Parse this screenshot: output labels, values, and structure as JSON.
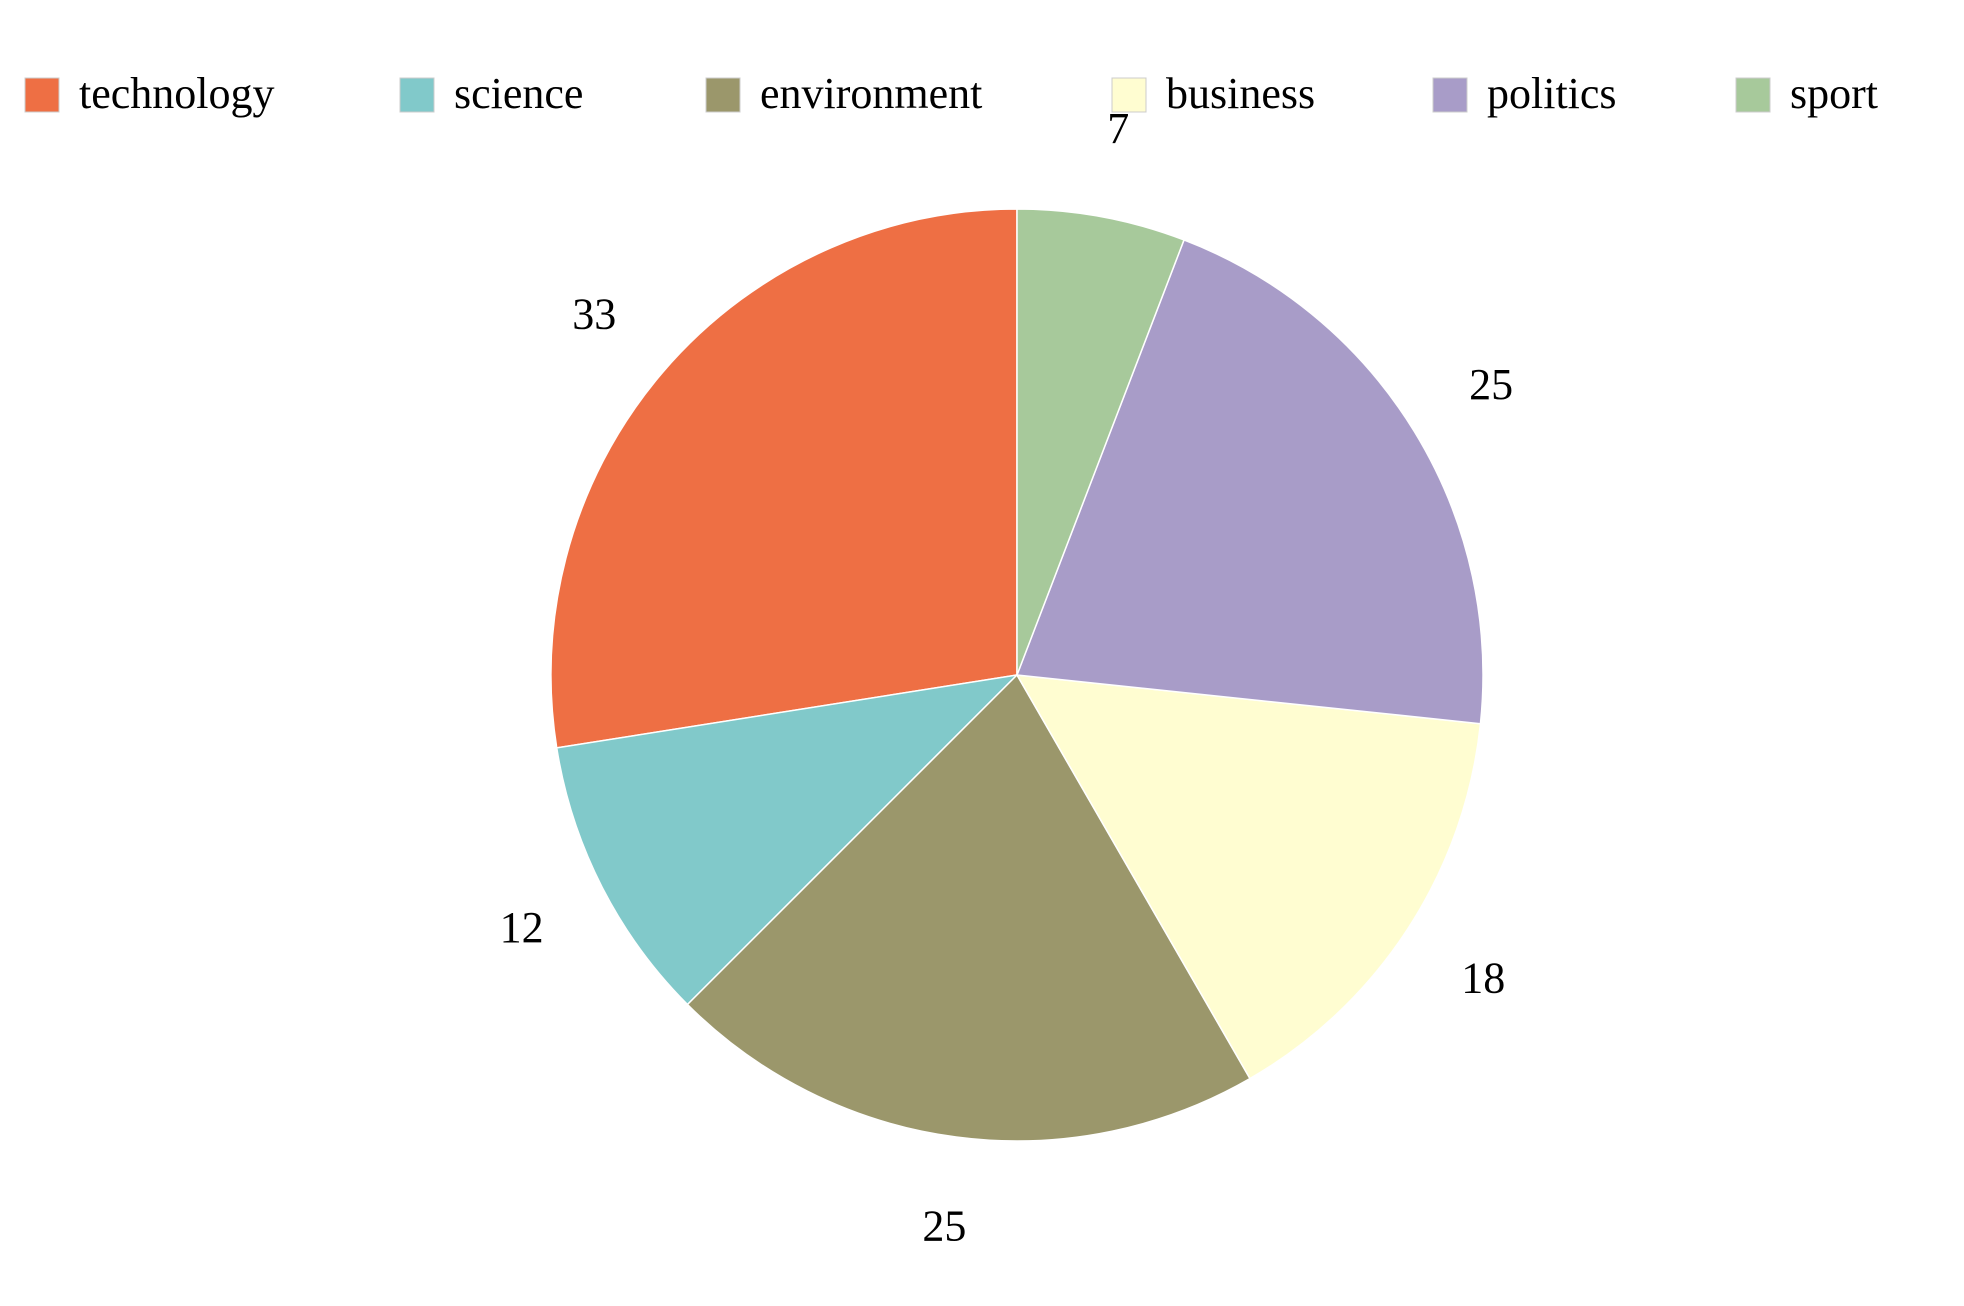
{
  "chart_data": {
    "type": "pie",
    "title": "",
    "start_angle": "12 o'clock",
    "direction": "counter-clockwise",
    "legend_position": "top",
    "slices": [
      {
        "name": "technology",
        "value": 33,
        "label": "33",
        "color": "#EE6F44"
      },
      {
        "name": "science",
        "value": 12,
        "label": "12",
        "color": "#81C9CA"
      },
      {
        "name": "environment",
        "value": 25,
        "label": "25",
        "color": "#9B976B"
      },
      {
        "name": "business",
        "value": 18,
        "label": "18",
        "color": "#FFFDD1"
      },
      {
        "name": "politics",
        "value": 25,
        "label": "25",
        "color": "#A89CC8"
      },
      {
        "name": "sport",
        "value": 7,
        "label": "7",
        "color": "#A7C99B"
      }
    ]
  }
}
